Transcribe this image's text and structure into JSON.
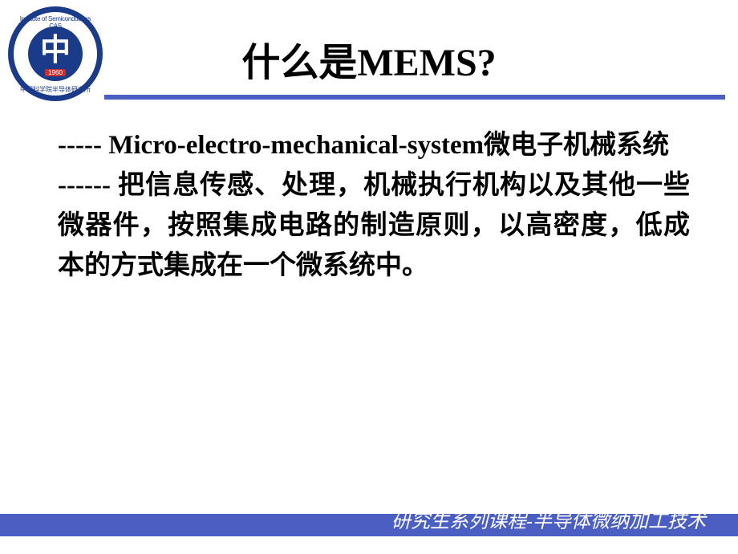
{
  "colors": {
    "accent": "#4a5fc1",
    "logo_bg": "#1a3a8a",
    "logo_year_bg": "#c83030",
    "text": "#000000",
    "footer_text": "#ffffff",
    "background": "#ffffff"
  },
  "logo": {
    "top_text": "Institute of Semiconductors CAS",
    "bottom_text": "中国科学院半导体研究所",
    "symbol": "中",
    "year": "1960"
  },
  "title": "什么是MEMS?",
  "body": {
    "line1": "----- Micro-electro-mechanical-system微电子机械系统",
    "line2": "------ 把信息传感、处理，机械执行机构以及其他一些微器件，按照集成电路的制造原则，以高密度，低成本的方式集成在一个微系统中。"
  },
  "footer": "研究生系列课程-半导体微纳加工技术",
  "typography": {
    "title_fontsize": 48,
    "body_fontsize": 33,
    "footer_fontsize": 24
  }
}
